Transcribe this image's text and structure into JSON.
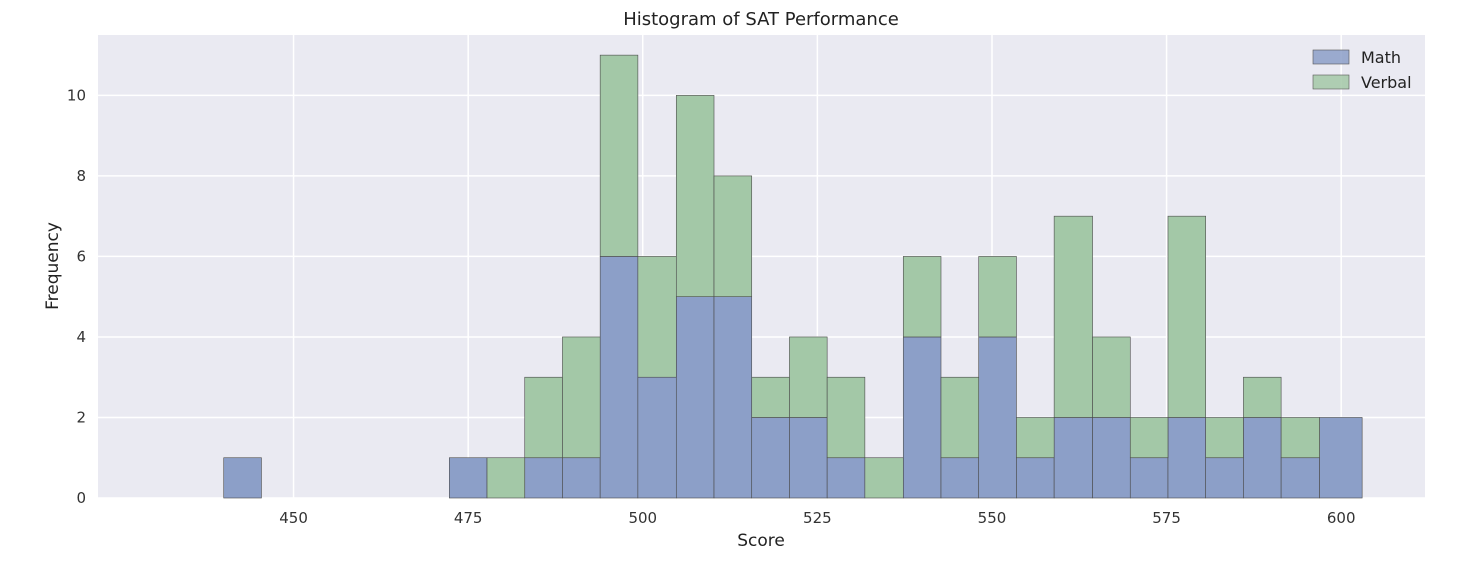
{
  "chart_data": {
    "type": "bar",
    "title": "Histogram of SAT Performance",
    "xlabel": "Score",
    "ylabel": "Frequency",
    "xlim": [
      422,
      612
    ],
    "ylim": [
      0,
      11.5
    ],
    "xticks": [
      450,
      475,
      500,
      525,
      550,
      575,
      600
    ],
    "yticks": [
      0,
      2,
      4,
      6,
      8,
      10
    ],
    "grid": true,
    "legend_position": "top-right",
    "stacked": true,
    "series": [
      {
        "name": "Math",
        "color": "#8c9fc8",
        "bins": [
          {
            "x0": 440,
            "x1": 445.4,
            "count": 1
          },
          {
            "x0": 472.3,
            "x1": 477.7,
            "count": 1
          },
          {
            "x0": 483.1,
            "x1": 488.5,
            "count": 1
          },
          {
            "x0": 488.5,
            "x1": 493.9,
            "count": 1
          },
          {
            "x0": 493.9,
            "x1": 499.3,
            "count": 6
          },
          {
            "x0": 499.3,
            "x1": 504.8,
            "count": 3
          },
          {
            "x0": 504.8,
            "x1": 510.2,
            "count": 5
          },
          {
            "x0": 510.2,
            "x1": 515.6,
            "count": 5
          },
          {
            "x0": 515.6,
            "x1": 521.0,
            "count": 2
          },
          {
            "x0": 521.0,
            "x1": 526.4,
            "count": 2
          },
          {
            "x0": 526.4,
            "x1": 531.8,
            "count": 1
          },
          {
            "x0": 537.3,
            "x1": 542.7,
            "count": 4
          },
          {
            "x0": 542.7,
            "x1": 548.1,
            "count": 1
          },
          {
            "x0": 548.1,
            "x1": 553.5,
            "count": 4
          },
          {
            "x0": 553.5,
            "x1": 558.9,
            "count": 1
          },
          {
            "x0": 558.9,
            "x1": 564.4,
            "count": 2
          },
          {
            "x0": 564.4,
            "x1": 569.8,
            "count": 2
          },
          {
            "x0": 569.8,
            "x1": 575.2,
            "count": 1
          },
          {
            "x0": 575.2,
            "x1": 580.6,
            "count": 2
          },
          {
            "x0": 580.6,
            "x1": 586.0,
            "count": 1
          },
          {
            "x0": 586.0,
            "x1": 591.4,
            "count": 2
          },
          {
            "x0": 591.4,
            "x1": 596.9,
            "count": 1
          },
          {
            "x0": 596.9,
            "x1": 603.0,
            "count": 2
          }
        ]
      },
      {
        "name": "Verbal",
        "color": "#a3c8a7",
        "bins": [
          {
            "x0": 477.7,
            "x1": 483.1,
            "count": 1
          },
          {
            "x0": 483.1,
            "x1": 488.5,
            "count": 2
          },
          {
            "x0": 488.5,
            "x1": 493.9,
            "count": 3
          },
          {
            "x0": 493.9,
            "x1": 499.3,
            "count": 5
          },
          {
            "x0": 499.3,
            "x1": 504.8,
            "count": 3
          },
          {
            "x0": 504.8,
            "x1": 510.2,
            "count": 5
          },
          {
            "x0": 510.2,
            "x1": 515.6,
            "count": 3
          },
          {
            "x0": 515.6,
            "x1": 521.0,
            "count": 1
          },
          {
            "x0": 521.0,
            "x1": 526.4,
            "count": 2
          },
          {
            "x0": 526.4,
            "x1": 531.8,
            "count": 2
          },
          {
            "x0": 531.8,
            "x1": 537.3,
            "count": 1
          },
          {
            "x0": 537.3,
            "x1": 542.7,
            "count": 2
          },
          {
            "x0": 542.7,
            "x1": 548.1,
            "count": 2
          },
          {
            "x0": 548.1,
            "x1": 553.5,
            "count": 2
          },
          {
            "x0": 553.5,
            "x1": 558.9,
            "count": 1
          },
          {
            "x0": 558.9,
            "x1": 564.4,
            "count": 5
          },
          {
            "x0": 564.4,
            "x1": 569.8,
            "count": 2
          },
          {
            "x0": 569.8,
            "x1": 575.2,
            "count": 1
          },
          {
            "x0": 575.2,
            "x1": 580.6,
            "count": 5
          },
          {
            "x0": 580.6,
            "x1": 586.0,
            "count": 1
          },
          {
            "x0": 586.0,
            "x1": 591.4,
            "count": 1
          },
          {
            "x0": 591.4,
            "x1": 596.9,
            "count": 1
          }
        ]
      }
    ]
  }
}
